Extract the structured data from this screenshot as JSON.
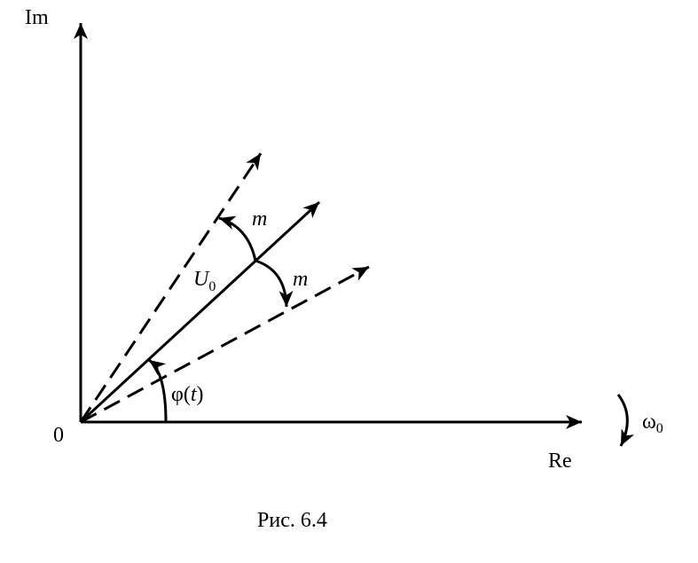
{
  "axes": {
    "imaginary_label": "Im",
    "real_label": "Re",
    "origin_label": "0"
  },
  "vectors": {
    "main_label": "U",
    "main_subscript": "0"
  },
  "annotations": {
    "modulation_upper": "m",
    "modulation_lower": "m",
    "phase_func": "φ",
    "phase_open": "(",
    "phase_var": "t",
    "phase_close": ")",
    "omega": "ω",
    "omega_subscript": "0"
  },
  "caption": "Рис. 6.4"
}
